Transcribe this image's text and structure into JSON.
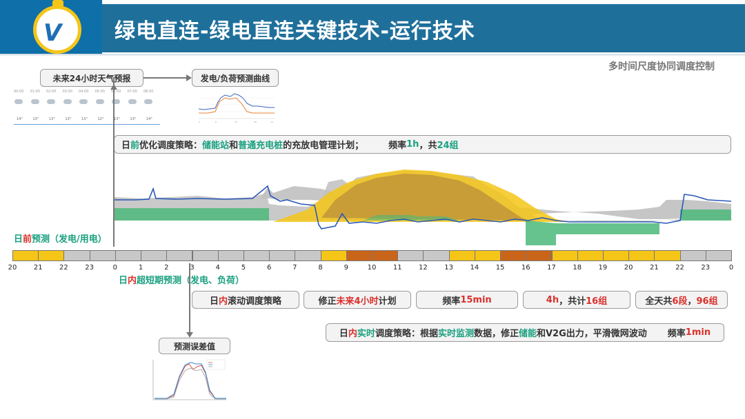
{
  "header": {
    "title": "绿电直连-绿电直连关键技术-运行技术"
  },
  "subtitle": "多时间尺度协同调度控制",
  "weather_box": {
    "label": "未来24小时天气预报"
  },
  "forecast_box": {
    "label": "发电/负荷预测曲线"
  },
  "weather": {
    "times": [
      "00:00",
      "01:00",
      "02:00",
      "03:00",
      "04:00",
      "05:00",
      "06:00",
      "07:00",
      "08:00"
    ],
    "temps": [
      "14°",
      "13°",
      "13°",
      "13°",
      "13°",
      "12°",
      "13°",
      "13°",
      "14°"
    ]
  },
  "day_ahead_strategy": {
    "p1": "日",
    "p2": "前",
    "p3": "优化调度策略：",
    "p4": "储能站",
    "p5": "和",
    "p6": "普通充电桩",
    "p7": "的充放电管理计划；",
    "freq_pre": "频率",
    "freq_val": "1h",
    "freq_mid": "，共",
    "freq_count": "24组"
  },
  "day_ahead_label": {
    "p1": "日",
    "p2": "前",
    "p3": "预测",
    "p4": "（发电/用电）"
  },
  "intraday_label": {
    "p1": "日",
    "p2": "内",
    "p3": "超短期预测",
    "p4": "（发电、负荷）"
  },
  "intraday_boxes": {
    "b1_p1": "日",
    "b1_p2": "内",
    "b1_p3": "滚动调度策略",
    "b2_p1": "修正",
    "b2_p2": "未来4小时",
    "b2_p3": "计划",
    "b3_p1": "频率",
    "b3_p2": "15min",
    "b4_p1": "4h",
    "b4_p2": "，共计",
    "b4_p3": "16组",
    "b5_p1": "全天共",
    "b5_p2": "6段",
    "b5_p3": "，",
    "b5_p4": "96组"
  },
  "realtime_strategy": {
    "p1": "日",
    "p2": "内",
    "p3": "实时",
    "p4": "调度策略：根据",
    "p5": "实时监测",
    "p6": "数据，修正",
    "p7": "储能",
    "p8": "和V2G出力，平滑微网波动",
    "freq_pre": "频率",
    "freq_val": "1min"
  },
  "error_box": {
    "label": "预测误差值"
  },
  "timeline": {
    "hours": [
      "20",
      "21",
      "22",
      "23",
      "0",
      "1",
      "2",
      "3",
      "4",
      "5",
      "6",
      "7",
      "8",
      "9",
      "10",
      "11",
      "12",
      "13",
      "14",
      "15",
      "16",
      "17",
      "18",
      "19",
      "20",
      "21",
      "22",
      "23",
      "0"
    ],
    "cell_colors": [
      "#f5c518",
      "#f5c518",
      "#c8c8c8",
      "#c8c8c8",
      "#c8c8c8",
      "#c8c8c8",
      "#c8c8c8",
      "#c8c8c8",
      "#c8c8c8",
      "#c8c8c8",
      "#c8c8c8",
      "#c8c8c8",
      "#f5c518",
      "#c9651a",
      "#c9651a",
      "#c8c8c8",
      "#c8c8c8",
      "#f5c518",
      "#f5c518",
      "#c9651a",
      "#c9651a",
      "#f5c518",
      "#f5c518",
      "#f5c518",
      "#f5c518",
      "#f5c518",
      "#c8c8c8",
      "#c8c8c8"
    ]
  },
  "colors": {
    "header_band": "#1f6f9b",
    "green_text": "#1aa080",
    "red_text": "#d9302b",
    "solar": "#f5c518",
    "storage": "#4cb87a",
    "load_gray": "#b0b0b0",
    "line_blue": "#2a58b8"
  }
}
